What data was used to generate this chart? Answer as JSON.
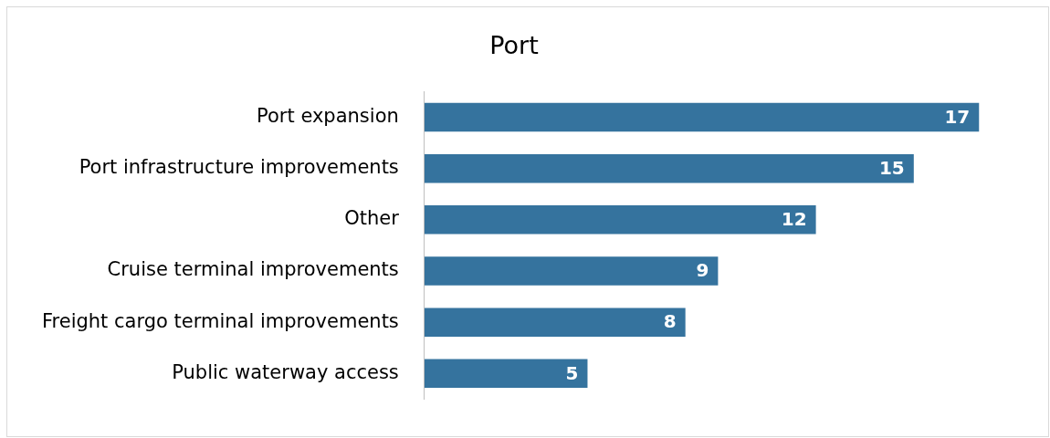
{
  "chart_data": {
    "type": "bar",
    "orientation": "horizontal",
    "title": "Port",
    "categories": [
      "Port expansion",
      "Port infrastructure improvements",
      "Other",
      "Cruise terminal improvements",
      "Freight cargo terminal improvements",
      "Public waterway access"
    ],
    "values": [
      17,
      15,
      12,
      9,
      8,
      5
    ],
    "color": "#35739e",
    "data_labels": true,
    "grid": false,
    "legend": false
  }
}
